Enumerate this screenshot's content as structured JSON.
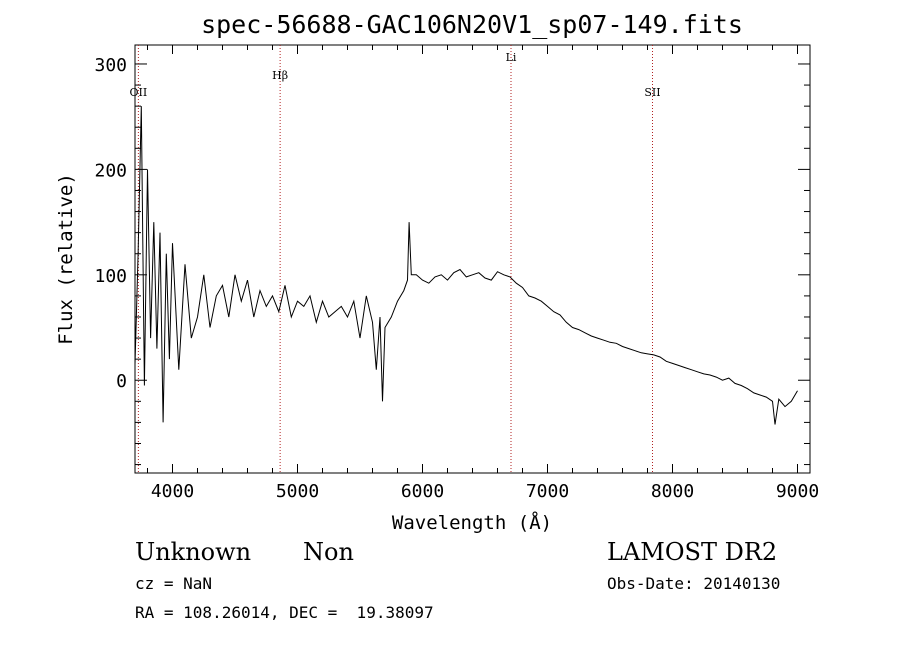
{
  "chart_data": {
    "type": "line",
    "title": "spec-56688-GAC106N20V1_sp07-149.fits",
    "xlabel": "Wavelength (Å)",
    "ylabel": "Flux (relative)",
    "xlim": [
      3700,
      9100
    ],
    "ylim": [
      -88,
      318
    ],
    "xticks": [
      4000,
      5000,
      6000,
      7000,
      8000,
      9000
    ],
    "yticks": [
      0,
      100,
      200,
      300
    ],
    "grid": false,
    "line_color": "#000000",
    "marker_color": "#b22222",
    "spectral_lines": [
      {
        "label": "OII",
        "wavelength": 3727
      },
      {
        "label": "Hβ",
        "wavelength": 4861
      },
      {
        "label": "Li",
        "wavelength": 6708
      },
      {
        "label": "SII",
        "wavelength": 7840
      }
    ],
    "series": [
      {
        "x": [
          3700,
          3725,
          3750,
          3775,
          3800,
          3825,
          3850,
          3875,
          3900,
          3925,
          3950,
          3975,
          4000,
          4050,
          4100,
          4150,
          4200,
          4250,
          4300,
          4350,
          4400,
          4450,
          4500,
          4550,
          4600,
          4650,
          4700,
          4750,
          4800,
          4850,
          4900,
          4950,
          5000,
          5050,
          5100,
          5150,
          5200,
          5250,
          5300,
          5350,
          5400,
          5450,
          5500,
          5550,
          5600,
          5630,
          5660,
          5680,
          5700,
          5750,
          5800,
          5850,
          5880,
          5893,
          5910,
          5950,
          6000,
          6050,
          6100,
          6150,
          6200,
          6250,
          6300,
          6350,
          6400,
          6450,
          6500,
          6550,
          6600,
          6650,
          6700,
          6750,
          6800,
          6850,
          6900,
          6950,
          7000,
          7050,
          7100,
          7150,
          7200,
          7250,
          7300,
          7350,
          7400,
          7450,
          7500,
          7550,
          7600,
          7650,
          7700,
          7750,
          7800,
          7850,
          7900,
          7950,
          8000,
          8050,
          8100,
          8150,
          8200,
          8250,
          8300,
          8350,
          8400,
          8450,
          8500,
          8550,
          8600,
          8650,
          8700,
          8750,
          8800,
          8820,
          8850,
          8900,
          8950,
          9000
        ],
        "y": [
          15,
          120,
          260,
          -5,
          200,
          40,
          150,
          30,
          140,
          -40,
          120,
          20,
          130,
          10,
          110,
          40,
          60,
          100,
          50,
          80,
          90,
          60,
          100,
          75,
          95,
          60,
          85,
          70,
          80,
          65,
          90,
          60,
          75,
          70,
          80,
          55,
          75,
          60,
          65,
          70,
          60,
          75,
          40,
          80,
          55,
          10,
          60,
          -20,
          50,
          60,
          75,
          85,
          95,
          150,
          100,
          100,
          95,
          92,
          98,
          100,
          95,
          102,
          105,
          98,
          100,
          102,
          97,
          95,
          103,
          100,
          98,
          92,
          88,
          80,
          78,
          75,
          70,
          65,
          62,
          55,
          50,
          48,
          45,
          42,
          40,
          38,
          36,
          35,
          32,
          30,
          28,
          26,
          25,
          24,
          22,
          18,
          16,
          14,
          12,
          10,
          8,
          6,
          5,
          3,
          0,
          2,
          -3,
          -5,
          -8,
          -12,
          -14,
          -16,
          -20,
          -42,
          -18,
          -25,
          -20,
          -10
        ]
      }
    ]
  },
  "footer": {
    "object_class": "Unknown",
    "subclass": "Non",
    "survey": "LAMOST DR2",
    "cz": "cz = NaN",
    "obs_date": "Obs-Date: 20140130",
    "coords": "RA = 108.26014, DEC =  19.38097"
  }
}
